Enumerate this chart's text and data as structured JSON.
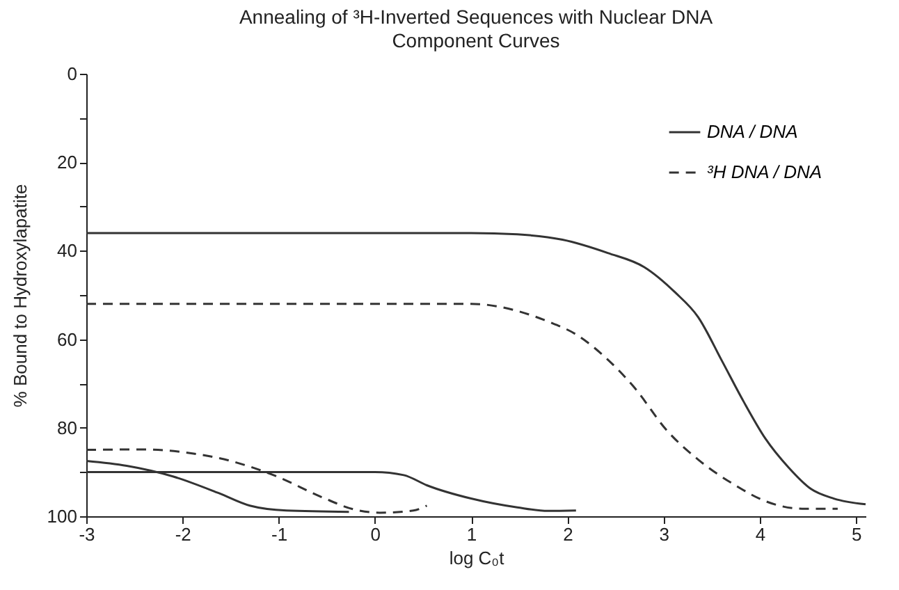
{
  "chart_data": {
    "type": "line",
    "title": "Annealing of ³H-Inverted Sequences with Nuclear DNA",
    "subtitle": "Component Curves",
    "xlabel": "log C₀t",
    "ylabel": "% Bound to Hydroxylapatite",
    "xlim": [
      -3,
      5.1
    ],
    "xticks": [
      -3,
      -2,
      -1,
      0,
      1,
      2,
      3,
      4,
      5
    ],
    "ylim": [
      100,
      0
    ],
    "yticks": [
      0,
      {
        "value": 10,
        "label": null
      },
      20,
      {
        "value": 30,
        "label": null
      },
      40,
      {
        "value": 50,
        "label": null
      },
      60,
      {
        "value": 70,
        "label": null
      },
      80,
      {
        "value": 90,
        "label": null
      },
      100
    ],
    "grid": false,
    "legend": "top right",
    "marker": "none",
    "series": [
      {
        "name": "DNA / DNA",
        "color": "#333333",
        "line_style": "solid",
        "x": [
          -3,
          0,
          1.0,
          1.48,
          1.95,
          2.42,
          2.8,
          3.12,
          3.36,
          3.6,
          3.83,
          4.06,
          4.3,
          4.53,
          4.77,
          5.1
        ],
        "values": [
          36,
          36,
          36,
          36.3,
          37.5,
          40.5,
          43.7,
          49.4,
          55,
          64.6,
          74,
          82.5,
          89,
          93.8,
          96,
          97.3
        ]
      },
      {
        "name": "³H DNA / DNA",
        "color": "#333333",
        "line_style": "dashed",
        "x": [
          -3,
          0,
          1.0,
          1.48,
          1.8,
          2.09,
          2.42,
          2.7,
          3.03,
          3.36,
          3.73,
          4.06,
          4.44,
          4.81
        ],
        "values": [
          52,
          52,
          52,
          53.6,
          56,
          58.9,
          64.6,
          71,
          80.5,
          87.2,
          92.8,
          96.6,
          98.3,
          98.3
        ]
      },
      {
        "color": "#333333",
        "line_style": "solid",
        "x": [
          -3,
          -2.58,
          -2.1,
          -1.62,
          -1.3,
          -0.92,
          -0.27
        ],
        "values": [
          87.5,
          88.6,
          91,
          94.8,
          97.6,
          98.7,
          99
        ]
      },
      {
        "color": "#333333",
        "line_style": "solid",
        "x": [
          -3,
          -1,
          0,
          0.3,
          0.54,
          1.0,
          1.48,
          1.8,
          2.09
        ],
        "values": [
          90,
          90,
          90,
          90.7,
          93,
          96,
          98,
          98.8,
          98.7
        ]
      },
      {
        "color": "#333333",
        "line_style": "dashed",
        "x": [
          -3,
          -2.4,
          -2,
          -1.5,
          -1.02,
          -0.55,
          -0.21,
          0.05,
          0.4,
          0.54
        ],
        "values": [
          85,
          84.9,
          85.5,
          87.5,
          91,
          95.7,
          98.5,
          99.2,
          98.7,
          97.6
        ]
      }
    ]
  }
}
